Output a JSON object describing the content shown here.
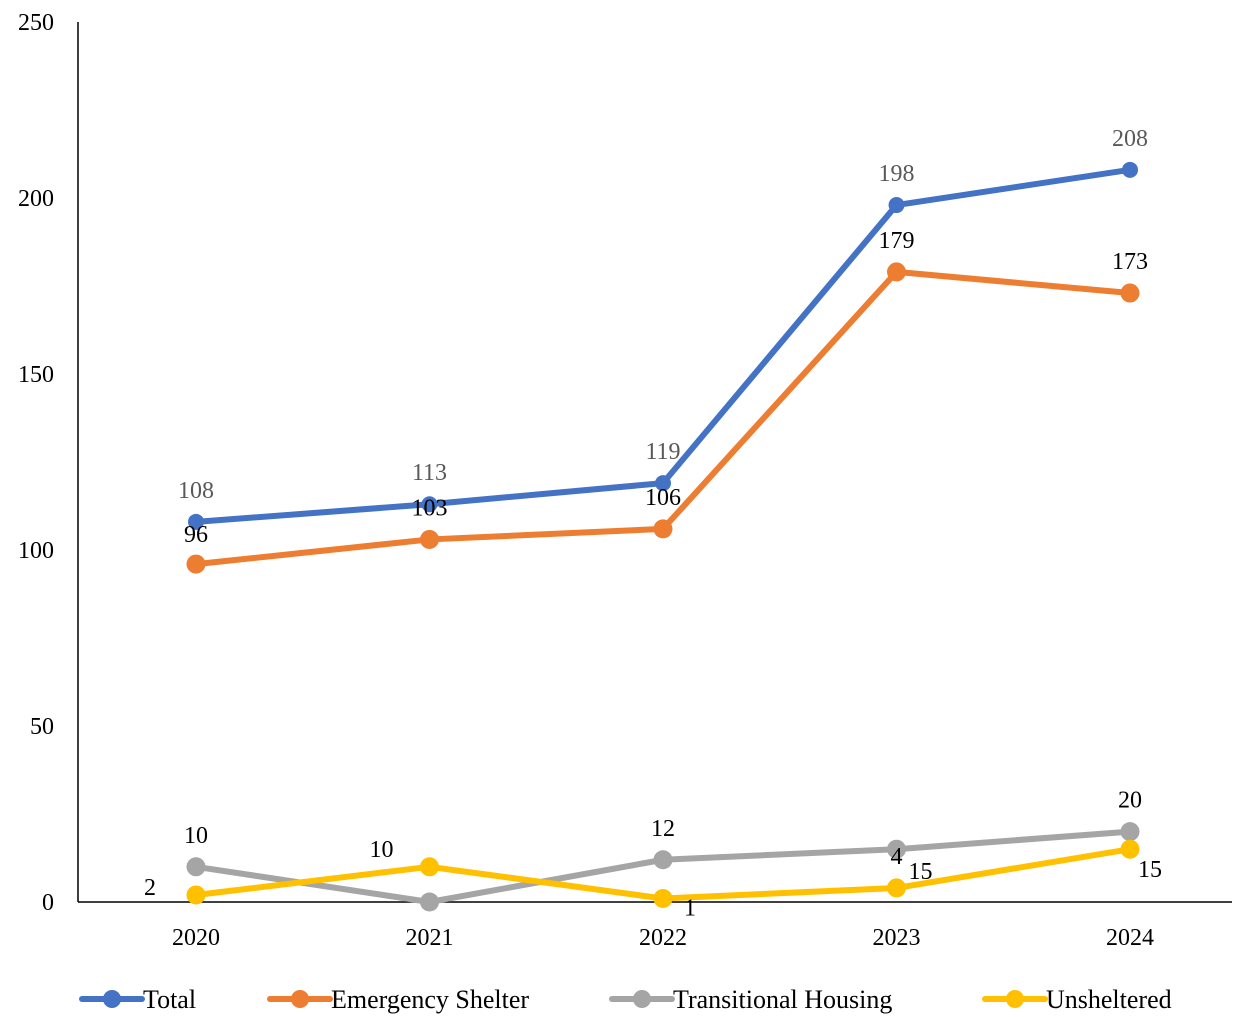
{
  "chart_data": {
    "type": "line",
    "title": "",
    "xlabel": "",
    "ylabel": "",
    "categories": [
      "2020",
      "2021",
      "2022",
      "2023",
      "2024"
    ],
    "ylim": [
      0,
      250
    ],
    "yticks": [
      0,
      50,
      100,
      150,
      200,
      250
    ],
    "grid": false,
    "legend": "bottom",
    "series": [
      {
        "name": "Total",
        "color": "#4472C4",
        "values": [
          108,
          113,
          119,
          198,
          208
        ],
        "label_color": "#595959"
      },
      {
        "name": "Emergency Shelter",
        "color": "#ED7D31",
        "values": [
          96,
          103,
          106,
          179,
          173
        ],
        "label_color": "#000000"
      },
      {
        "name": "Transitional Housing",
        "color": "#A5A5A5",
        "values": [
          10,
          0,
          12,
          15,
          20
        ],
        "label_color": "#000000"
      },
      {
        "name": "Unsheltered",
        "color": "#FFC000",
        "values": [
          2,
          10,
          1,
          4,
          15
        ],
        "label_color": "#000000"
      }
    ],
    "data_labels": [
      {
        "series": 0,
        "index": 0,
        "text": "108"
      },
      {
        "series": 0,
        "index": 1,
        "text": "113"
      },
      {
        "series": 0,
        "index": 2,
        "text": "119"
      },
      {
        "series": 0,
        "index": 3,
        "text": "198"
      },
      {
        "series": 0,
        "index": 4,
        "text": "208"
      },
      {
        "series": 1,
        "index": 0,
        "text": "96"
      },
      {
        "series": 1,
        "index": 1,
        "text": "103"
      },
      {
        "series": 1,
        "index": 2,
        "text": "106"
      },
      {
        "series": 1,
        "index": 3,
        "text": "179"
      },
      {
        "series": 1,
        "index": 4,
        "text": "173"
      },
      {
        "series": 2,
        "index": 0,
        "text": "10"
      },
      {
        "series": 2,
        "index": 2,
        "text": "12"
      },
      {
        "series": 2,
        "index": 3,
        "text": "15"
      },
      {
        "series": 2,
        "index": 4,
        "text": "20"
      },
      {
        "series": 3,
        "index": 0,
        "text": "2"
      },
      {
        "series": 3,
        "index": 1,
        "text": "10"
      },
      {
        "series": 3,
        "index": 2,
        "text": "1"
      },
      {
        "series": 3,
        "index": 3,
        "text": "4"
      },
      {
        "series": 3,
        "index": 4,
        "text": "15"
      }
    ]
  }
}
